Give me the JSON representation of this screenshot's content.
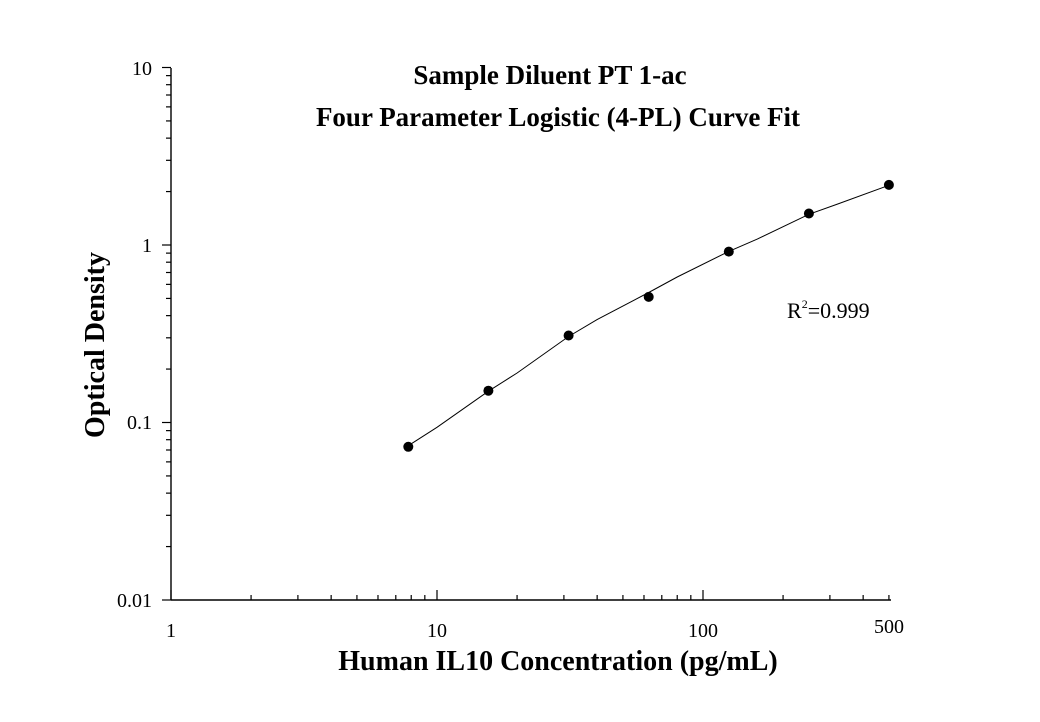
{
  "chart_data": {
    "type": "scatter",
    "title": "Sample Diluent PT 1-ac",
    "subtitle": "Four Parameter Logistic (4-PL) Curve Fit",
    "xlabel": "Human IL10 Concentration (pg/mL)",
    "ylabel": "Optical Density",
    "xscale": "log",
    "yscale": "log",
    "xlim": [
      1,
      500
    ],
    "ylim": [
      0.01,
      10
    ],
    "x_tick_labels": [
      "1",
      "10",
      "100",
      "500"
    ],
    "y_tick_labels": [
      "0.01",
      "0.1",
      "1",
      "10"
    ],
    "grid": false,
    "legend": "none",
    "series": [
      {
        "x": [
          7.8,
          15.6,
          31.25,
          62.5,
          125,
          250,
          500
        ],
        "y": [
          0.073,
          0.151,
          0.309,
          0.51,
          0.918,
          1.505,
          2.18
        ]
      }
    ],
    "fit_curve": {
      "type": "4-PL",
      "x": [
        7.8,
        10,
        15.6,
        20,
        31.25,
        40,
        62.5,
        80,
        125,
        160,
        250,
        320,
        500
      ],
      "y": [
        0.074,
        0.094,
        0.15,
        0.19,
        0.305,
        0.38,
        0.54,
        0.66,
        0.92,
        1.08,
        1.49,
        1.7,
        2.17
      ]
    },
    "annotation": {
      "r_prefix": "R",
      "r_sup": "2",
      "r_value": "=0.999"
    },
    "colors": {
      "marker": "#000000",
      "line": "#000000",
      "axis": "#000000"
    }
  }
}
